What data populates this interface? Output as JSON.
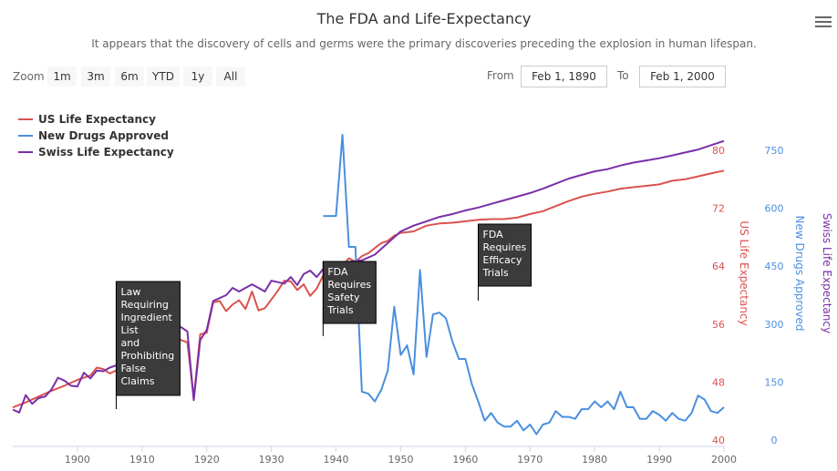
{
  "header": {
    "title": "The FDA and Life-Expectancy",
    "subtitle": "It appears that the discovery of cells and germs were the primary discoveries preceding the explosion in human lifespan."
  },
  "range_selector": {
    "zoom_label": "Zoom",
    "buttons": [
      "1m",
      "3m",
      "6m",
      "YTD",
      "1y",
      "All"
    ],
    "from_label": "From",
    "from_value": "Feb 1, 1890",
    "to_label": "To",
    "to_value": "Feb 1, 2000"
  },
  "chart_data": {
    "type": "line",
    "title": "The FDA and Life-Expectancy",
    "subtitle": "It appears that the discovery of cells and germs were the primary discoveries preceding the explosion in human lifespan.",
    "x_axis": {
      "ticks": [
        1900,
        1910,
        1920,
        1930,
        1940,
        1950,
        1960,
        1970,
        1980,
        1990,
        2000
      ],
      "range": [
        1890,
        2000
      ]
    },
    "y_axes": [
      {
        "title": "US Life Expectancy",
        "color": "#d9534f",
        "ticks": [
          40,
          48,
          56,
          64,
          72,
          80
        ],
        "range": [
          40,
          80
        ]
      },
      {
        "title": "New Drugs Approved",
        "color": "#4a8fe0",
        "ticks": [
          0,
          150,
          300,
          450,
          600,
          750
        ],
        "range": [
          0,
          750
        ]
      },
      {
        "title": "Swiss Life Expectancy",
        "color": "#7a2fa8",
        "range": [
          40,
          80
        ]
      }
    ],
    "legend_position": "top-left",
    "series": [
      {
        "name": "US Life Expectancy",
        "color": "#d9534f",
        "axis": 0,
        "points": [
          [
            1890,
            44.5
          ],
          [
            1892,
            45.2
          ],
          [
            1894,
            46.0
          ],
          [
            1896,
            46.8
          ],
          [
            1898,
            47.5
          ],
          [
            1900,
            48.3
          ],
          [
            1902,
            48.9
          ],
          [
            1903,
            50.0
          ],
          [
            1904,
            49.8
          ],
          [
            1905,
            49.2
          ],
          [
            1906,
            49.6
          ],
          [
            1907,
            50.5
          ],
          [
            1908,
            51.0
          ],
          [
            1909,
            51.3
          ],
          [
            1910,
            51.8
          ],
          [
            1911,
            53.0
          ],
          [
            1912,
            52.5
          ],
          [
            1913,
            53.5
          ],
          [
            1914,
            54.2
          ],
          [
            1915,
            54.6
          ],
          [
            1916,
            53.8
          ],
          [
            1917,
            53.5
          ],
          [
            1918,
            45.8
          ],
          [
            1919,
            54.6
          ],
          [
            1920,
            54.8
          ],
          [
            1921,
            59.0
          ],
          [
            1922,
            59.2
          ],
          [
            1923,
            57.8
          ],
          [
            1924,
            58.7
          ],
          [
            1925,
            59.3
          ],
          [
            1926,
            58.1
          ],
          [
            1927,
            60.5
          ],
          [
            1928,
            57.9
          ],
          [
            1929,
            58.2
          ],
          [
            1930,
            59.4
          ],
          [
            1931,
            60.6
          ],
          [
            1932,
            62.0
          ],
          [
            1933,
            61.9
          ],
          [
            1934,
            60.7
          ],
          [
            1935,
            61.5
          ],
          [
            1936,
            59.9
          ],
          [
            1937,
            60.9
          ],
          [
            1938,
            62.7
          ],
          [
            1939,
            63.3
          ],
          [
            1940,
            63.4
          ],
          [
            1941,
            64.1
          ],
          [
            1942,
            65.1
          ],
          [
            1943,
            64.6
          ],
          [
            1944,
            65.4
          ],
          [
            1945,
            65.8
          ],
          [
            1946,
            66.5
          ],
          [
            1947,
            67.2
          ],
          [
            1948,
            67.5
          ],
          [
            1949,
            68.2
          ],
          [
            1950,
            68.6
          ],
          [
            1952,
            68.8
          ],
          [
            1954,
            69.6
          ],
          [
            1956,
            69.9
          ],
          [
            1958,
            70.0
          ],
          [
            1960,
            70.2
          ],
          [
            1962,
            70.4
          ],
          [
            1964,
            70.5
          ],
          [
            1966,
            70.5
          ],
          [
            1968,
            70.7
          ],
          [
            1970,
            71.2
          ],
          [
            1972,
            71.6
          ],
          [
            1974,
            72.3
          ],
          [
            1976,
            73.0
          ],
          [
            1978,
            73.6
          ],
          [
            1980,
            74.0
          ],
          [
            1982,
            74.3
          ],
          [
            1984,
            74.7
          ],
          [
            1986,
            74.9
          ],
          [
            1988,
            75.1
          ],
          [
            1990,
            75.3
          ],
          [
            1992,
            75.8
          ],
          [
            1994,
            76.0
          ],
          [
            1996,
            76.4
          ],
          [
            1998,
            76.8
          ],
          [
            2000,
            77.2
          ]
        ]
      },
      {
        "name": "New Drugs Approved",
        "color": "#4a8fe0",
        "axis": 1,
        "points": [
          [
            1938,
            580
          ],
          [
            1940,
            580
          ],
          [
            1941,
            790
          ],
          [
            1942,
            500
          ],
          [
            1943,
            500
          ],
          [
            1944,
            125
          ],
          [
            1945,
            120
          ],
          [
            1946,
            100
          ],
          [
            1947,
            130
          ],
          [
            1948,
            180
          ],
          [
            1949,
            345
          ],
          [
            1950,
            220
          ],
          [
            1951,
            245
          ],
          [
            1952,
            170
          ],
          [
            1953,
            440
          ],
          [
            1954,
            215
          ],
          [
            1955,
            325
          ],
          [
            1956,
            330
          ],
          [
            1957,
            315
          ],
          [
            1958,
            255
          ],
          [
            1959,
            210
          ],
          [
            1960,
            210
          ],
          [
            1961,
            145
          ],
          [
            1962,
            100
          ],
          [
            1963,
            50
          ],
          [
            1964,
            70
          ],
          [
            1965,
            45
          ],
          [
            1966,
            35
          ],
          [
            1967,
            35
          ],
          [
            1968,
            50
          ],
          [
            1969,
            25
          ],
          [
            1970,
            40
          ],
          [
            1971,
            15
          ],
          [
            1972,
            40
          ],
          [
            1973,
            45
          ],
          [
            1974,
            75
          ],
          [
            1975,
            60
          ],
          [
            1976,
            60
          ],
          [
            1977,
            55
          ],
          [
            1978,
            80
          ],
          [
            1979,
            80
          ],
          [
            1980,
            100
          ],
          [
            1981,
            85
          ],
          [
            1982,
            100
          ],
          [
            1983,
            80
          ],
          [
            1984,
            125
          ],
          [
            1985,
            85
          ],
          [
            1986,
            85
          ],
          [
            1987,
            55
          ],
          [
            1988,
            55
          ],
          [
            1989,
            75
          ],
          [
            1990,
            65
          ],
          [
            1991,
            50
          ],
          [
            1992,
            70
          ],
          [
            1993,
            55
          ],
          [
            1994,
            50
          ],
          [
            1995,
            70
          ],
          [
            1996,
            115
          ],
          [
            1997,
            105
          ],
          [
            1998,
            75
          ],
          [
            1999,
            70
          ],
          [
            2000,
            85
          ]
        ]
      },
      {
        "name": "Swiss Life Expectancy",
        "color": "#7a2fa8",
        "axis": 2,
        "points": [
          [
            1890,
            44.2
          ],
          [
            1891,
            43.8
          ],
          [
            1892,
            46.2
          ],
          [
            1893,
            45.0
          ],
          [
            1894,
            45.8
          ],
          [
            1895,
            46.0
          ],
          [
            1896,
            47.0
          ],
          [
            1897,
            48.6
          ],
          [
            1898,
            48.2
          ],
          [
            1899,
            47.5
          ],
          [
            1900,
            47.4
          ],
          [
            1901,
            49.3
          ],
          [
            1902,
            48.5
          ],
          [
            1903,
            49.6
          ],
          [
            1904,
            49.5
          ],
          [
            1905,
            50.0
          ],
          [
            1906,
            50.3
          ],
          [
            1907,
            51.3
          ],
          [
            1908,
            52.3
          ],
          [
            1909,
            52.2
          ],
          [
            1910,
            52.3
          ],
          [
            1911,
            51.0
          ],
          [
            1912,
            53.0
          ],
          [
            1913,
            53.2
          ],
          [
            1914,
            54.0
          ],
          [
            1915,
            55.0
          ],
          [
            1916,
            55.6
          ],
          [
            1917,
            55.0
          ],
          [
            1918,
            45.5
          ],
          [
            1919,
            53.8
          ],
          [
            1920,
            55.2
          ],
          [
            1921,
            59.2
          ],
          [
            1922,
            59.6
          ],
          [
            1923,
            60.0
          ],
          [
            1924,
            61.0
          ],
          [
            1925,
            60.5
          ],
          [
            1926,
            61.0
          ],
          [
            1927,
            61.5
          ],
          [
            1928,
            61.0
          ],
          [
            1929,
            60.5
          ],
          [
            1930,
            62.0
          ],
          [
            1931,
            61.8
          ],
          [
            1932,
            61.6
          ],
          [
            1933,
            62.5
          ],
          [
            1934,
            61.4
          ],
          [
            1935,
            62.9
          ],
          [
            1936,
            63.4
          ],
          [
            1937,
            62.5
          ],
          [
            1938,
            63.6
          ],
          [
            1939,
            64.0
          ],
          [
            1940,
            63.8
          ],
          [
            1942,
            64.6
          ],
          [
            1944,
            64.8
          ],
          [
            1946,
            65.6
          ],
          [
            1948,
            67.2
          ],
          [
            1950,
            68.8
          ],
          [
            1952,
            69.6
          ],
          [
            1954,
            70.2
          ],
          [
            1956,
            70.8
          ],
          [
            1958,
            71.2
          ],
          [
            1960,
            71.7
          ],
          [
            1962,
            72.1
          ],
          [
            1964,
            72.6
          ],
          [
            1966,
            73.1
          ],
          [
            1968,
            73.6
          ],
          [
            1970,
            74.1
          ],
          [
            1972,
            74.7
          ],
          [
            1974,
            75.4
          ],
          [
            1976,
            76.1
          ],
          [
            1978,
            76.6
          ],
          [
            1980,
            77.1
          ],
          [
            1982,
            77.4
          ],
          [
            1984,
            77.9
          ],
          [
            1986,
            78.3
          ],
          [
            1988,
            78.6
          ],
          [
            1990,
            78.9
          ],
          [
            1992,
            79.3
          ],
          [
            1994,
            79.7
          ],
          [
            1996,
            80.1
          ],
          [
            1998,
            80.7
          ],
          [
            2000,
            81.3
          ]
        ]
      }
    ],
    "flags": [
      {
        "x": 1906,
        "lines": [
          "Law",
          "Requiring",
          "Ingredient",
          "List",
          "and",
          "Prohibiting",
          "False",
          "Claims"
        ]
      },
      {
        "x": 1938,
        "lines": [
          "FDA",
          "Requires",
          "Safety",
          "Trials"
        ]
      },
      {
        "x": 1962,
        "lines": [
          "FDA",
          "Requires",
          "Efficacy",
          "Trials"
        ]
      }
    ]
  }
}
